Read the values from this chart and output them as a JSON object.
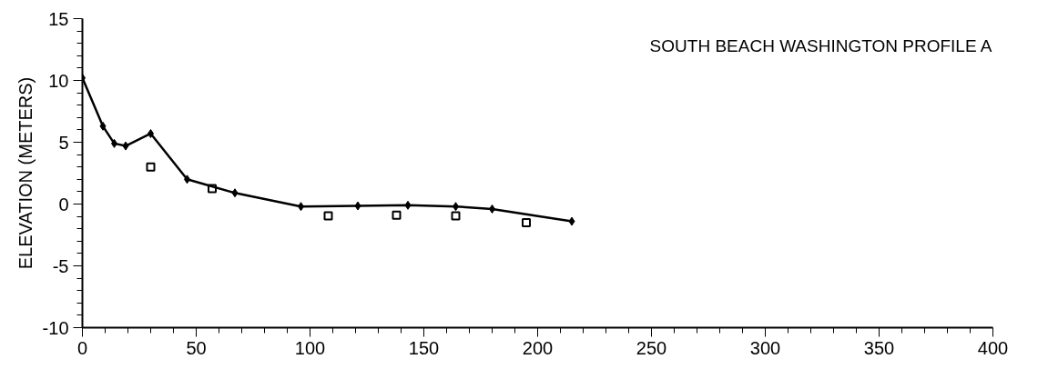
{
  "chart_data": {
    "type": "line",
    "title": "SOUTH BEACH WASHINGTON PROFILE A",
    "ylabel": "ELEVATION (METERS)",
    "xlim": [
      0,
      400
    ],
    "xticks": [
      0,
      50,
      100,
      150,
      200,
      250,
      300,
      350,
      400
    ],
    "ylim": [
      -10,
      15
    ],
    "yticks": [
      -10,
      -5,
      0,
      5,
      10,
      15
    ],
    "grid": false,
    "series": [
      {
        "marker": "diamond",
        "color": "#000000",
        "x": [
          0,
          9,
          14,
          19,
          30,
          46,
          67,
          96,
          121,
          143,
          164,
          180,
          215
        ],
        "values": [
          10.2,
          6.3,
          4.9,
          4.7,
          5.7,
          2.0,
          0.9,
          -0.2,
          -0.15,
          -0.1,
          -0.2,
          -0.4,
          -1.4
        ]
      },
      {
        "type": "scatter",
        "marker": "square",
        "color": "#000000",
        "x": [
          30,
          57,
          108,
          138,
          164,
          195
        ],
        "values": [
          3.0,
          1.25,
          -0.95,
          -0.9,
          -0.95,
          -1.5
        ]
      }
    ]
  }
}
